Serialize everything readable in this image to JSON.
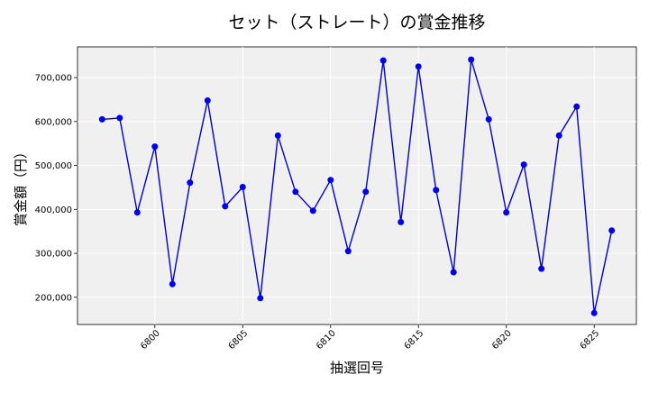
{
  "chart_data": {
    "type": "line",
    "title": "セット（ストレート）の賞金推移",
    "xlabel": "抽選回号",
    "ylabel": "賞金額（円）",
    "xlim": [
      6795.6,
      6827.4
    ],
    "ylim": [
      138000,
      770000
    ],
    "x_ticks": [
      6800,
      6805,
      6810,
      6815,
      6820,
      6825
    ],
    "x_tick_labels": [
      "6800",
      "6805",
      "6810",
      "6815",
      "6820",
      "6825"
    ],
    "y_ticks": [
      200000,
      300000,
      400000,
      500000,
      600000,
      700000
    ],
    "y_tick_labels": [
      "200,000",
      "300,000",
      "400,000",
      "500,000",
      "600,000",
      "700,000"
    ],
    "grid": true,
    "colors": {
      "line": "#0000cc",
      "marker": "#0000ee",
      "plot_bg": "#f0f0f0",
      "grid": "#ffffff"
    },
    "series": [
      {
        "x": [
          6797,
          6798,
          6799,
          6800,
          6801,
          6802,
          6803,
          6804,
          6805,
          6806,
          6807,
          6808,
          6809,
          6810,
          6811,
          6812,
          6813,
          6814,
          6815,
          6816,
          6817,
          6818,
          6819,
          6820,
          6821,
          6822,
          6823,
          6824,
          6825,
          6826
        ],
        "values": [
          605000,
          608000,
          393000,
          543000,
          230000,
          461000,
          648000,
          407000,
          451000,
          198000,
          568000,
          440000,
          397000,
          467000,
          305000,
          440000,
          739000,
          371000,
          725000,
          444000,
          257000,
          741000,
          605000,
          393000,
          502000,
          265000,
          568000,
          634000,
          164000,
          352000
        ]
      }
    ]
  }
}
